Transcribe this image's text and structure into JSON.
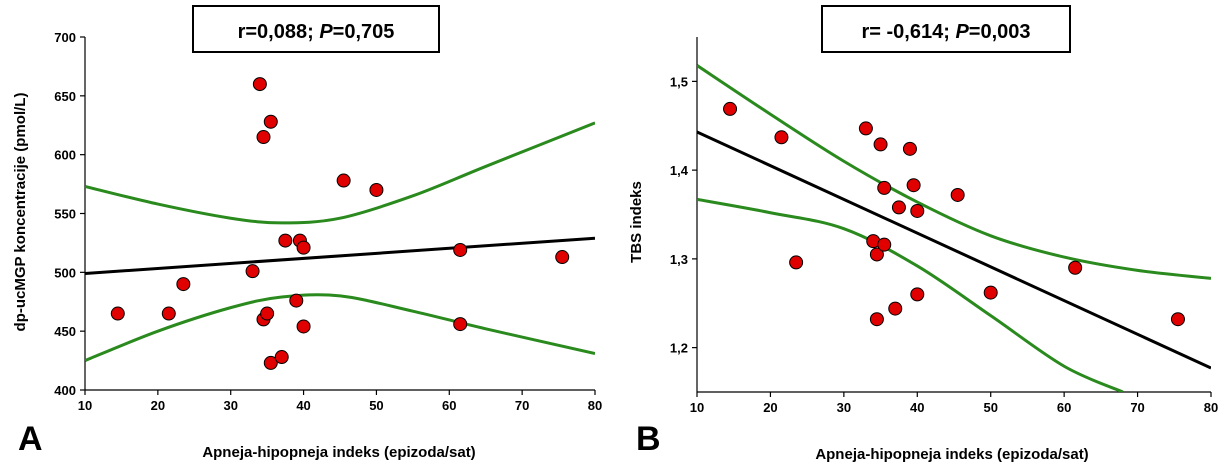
{
  "chart_data": [
    {
      "type": "scatter",
      "panel_letter": "A",
      "annotation": {
        "r_part": "r=0,088; ",
        "p_symbol": "P",
        "p_part": "=0,705"
      },
      "xlabel": "Apneja-hipopneja indeks (epizoda/sat)",
      "ylabel": "dp-ucMGP koncentracije (pmol/L)",
      "xlim": [
        10,
        80
      ],
      "ylim": [
        400,
        700
      ],
      "xticks": [
        "10",
        "20",
        "30",
        "40",
        "50",
        "60",
        "70",
        "80"
      ],
      "yticks": [
        "400",
        "450",
        "500",
        "550",
        "600",
        "650",
        "700"
      ],
      "points": [
        [
          14.5,
          465
        ],
        [
          21.5,
          465
        ],
        [
          23.5,
          490
        ],
        [
          33,
          501
        ],
        [
          34,
          660
        ],
        [
          34.5,
          615
        ],
        [
          34.5,
          460
        ],
        [
          35,
          465
        ],
        [
          35.5,
          628
        ],
        [
          35.5,
          423
        ],
        [
          37,
          428
        ],
        [
          37.5,
          527
        ],
        [
          39,
          476
        ],
        [
          39.5,
          527
        ],
        [
          40,
          521
        ],
        [
          40,
          454
        ],
        [
          45.5,
          578
        ],
        [
          50,
          570
        ],
        [
          61.5,
          519
        ],
        [
          61.5,
          456
        ],
        [
          75.5,
          513
        ]
      ],
      "regression": [
        [
          10,
          499
        ],
        [
          80,
          529
        ]
      ],
      "ci_upper": [
        [
          10,
          573
        ],
        [
          20,
          558
        ],
        [
          30,
          546
        ],
        [
          37,
          542
        ],
        [
          45,
          546
        ],
        [
          55,
          565
        ],
        [
          65,
          590
        ],
        [
          80,
          627
        ]
      ],
      "ci_lower": [
        [
          10,
          425
        ],
        [
          20,
          450
        ],
        [
          30,
          470
        ],
        [
          37,
          479
        ],
        [
          45,
          480
        ],
        [
          55,
          467
        ],
        [
          65,
          452
        ],
        [
          80,
          431
        ]
      ],
      "line_color": "#000000",
      "ci_color": "#2a8a1e",
      "point_color": "#e00000"
    },
    {
      "type": "scatter",
      "panel_letter": "B",
      "annotation": {
        "r_part": "r= -0,614; ",
        "p_symbol": "P",
        "p_part": "=0,003"
      },
      "xlabel": "Apneja-hipopneja indeks (epizoda/sat)",
      "ylabel": "TBS indeks",
      "xlim": [
        10,
        80
      ],
      "ylim": [
        1.15,
        1.55
      ],
      "xticks": [
        "10",
        "20",
        "30",
        "40",
        "50",
        "60",
        "70",
        "80"
      ],
      "yticks": [
        "1,2",
        "1,3",
        "1,4",
        "1,5"
      ],
      "ytick_values": [
        1.2,
        1.3,
        1.4,
        1.5
      ],
      "points": [
        [
          14.5,
          1.469
        ],
        [
          21.5,
          1.437
        ],
        [
          23.5,
          1.296
        ],
        [
          33,
          1.447
        ],
        [
          34,
          1.32
        ],
        [
          34.5,
          1.305
        ],
        [
          34.5,
          1.232
        ],
        [
          35,
          1.429
        ],
        [
          35.5,
          1.38
        ],
        [
          35.5,
          1.316
        ],
        [
          37,
          1.244
        ],
        [
          37.5,
          1.358
        ],
        [
          39,
          1.424
        ],
        [
          39.5,
          1.383
        ],
        [
          40,
          1.354
        ],
        [
          40,
          1.26
        ],
        [
          45.5,
          1.372
        ],
        [
          50,
          1.262
        ],
        [
          61.5,
          1.29
        ],
        [
          75.5,
          1.232
        ]
      ],
      "regression": [
        [
          10,
          1.443
        ],
        [
          80,
          1.177
        ]
      ],
      "ci_upper": [
        [
          10,
          1.518
        ],
        [
          20,
          1.463
        ],
        [
          30,
          1.41
        ],
        [
          40,
          1.364
        ],
        [
          50,
          1.326
        ],
        [
          60,
          1.302
        ],
        [
          70,
          1.287
        ],
        [
          80,
          1.278
        ]
      ],
      "ci_lower": [
        [
          10,
          1.367
        ],
        [
          20,
          1.352
        ],
        [
          30,
          1.334
        ],
        [
          40,
          1.292
        ],
        [
          50,
          1.236
        ],
        [
          60,
          1.179
        ],
        [
          68,
          1.15
        ]
      ],
      "line_color": "#000000",
      "ci_color": "#2a8a1e",
      "point_color": "#e00000"
    }
  ]
}
